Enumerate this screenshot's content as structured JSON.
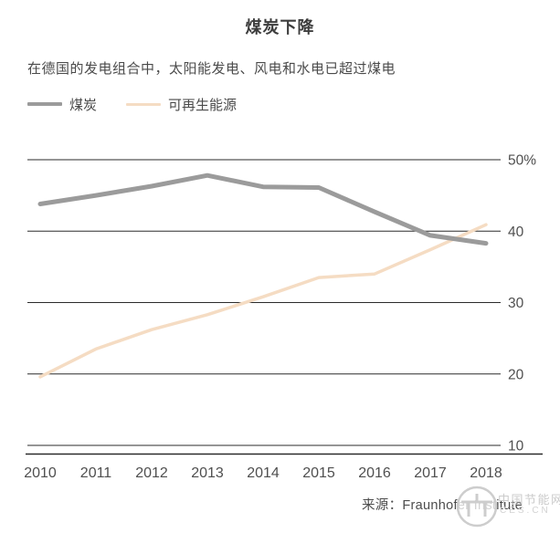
{
  "header": {
    "title": "煤炭下降",
    "subtitle": "在德国的发电组合中，太阳能发电、风电和水电已超过煤电"
  },
  "legend": {
    "items": [
      {
        "label": "煤炭",
        "color": "#9b9b9b"
      },
      {
        "label": "可再生能源",
        "color": "#f5dcc3"
      }
    ]
  },
  "footer": {
    "source": "来源：Fraunhofer Institute"
  },
  "watermark": {
    "name": "中国节能网",
    "domain": "CES.CN"
  },
  "chart_data": {
    "type": "line",
    "title": "煤炭下降",
    "x": [
      2010,
      2011,
      2012,
      2013,
      2014,
      2015,
      2016,
      2017,
      2018
    ],
    "series": [
      {
        "name": "煤炭",
        "color": "#9b9b9b",
        "values": [
          43.8,
          45.0,
          46.3,
          47.8,
          46.2,
          46.1,
          42.7,
          39.4,
          38.3
        ]
      },
      {
        "name": "可再生能源",
        "color": "#f5dcc3",
        "values": [
          19.6,
          23.5,
          26.2,
          28.3,
          30.8,
          33.5,
          34.0,
          37.4,
          40.9
        ]
      }
    ],
    "yticks": [
      {
        "value": 50,
        "label": "50%"
      },
      {
        "value": 40,
        "label": "40"
      },
      {
        "value": 30,
        "label": "30"
      },
      {
        "value": 20,
        "label": "20"
      },
      {
        "value": 10,
        "label": "10"
      }
    ],
    "ylim": [
      8,
      52
    ],
    "xlabel": "",
    "ylabel": "",
    "grid": "horizontal",
    "legend_position": "top-left",
    "tick_label_side": "right"
  }
}
